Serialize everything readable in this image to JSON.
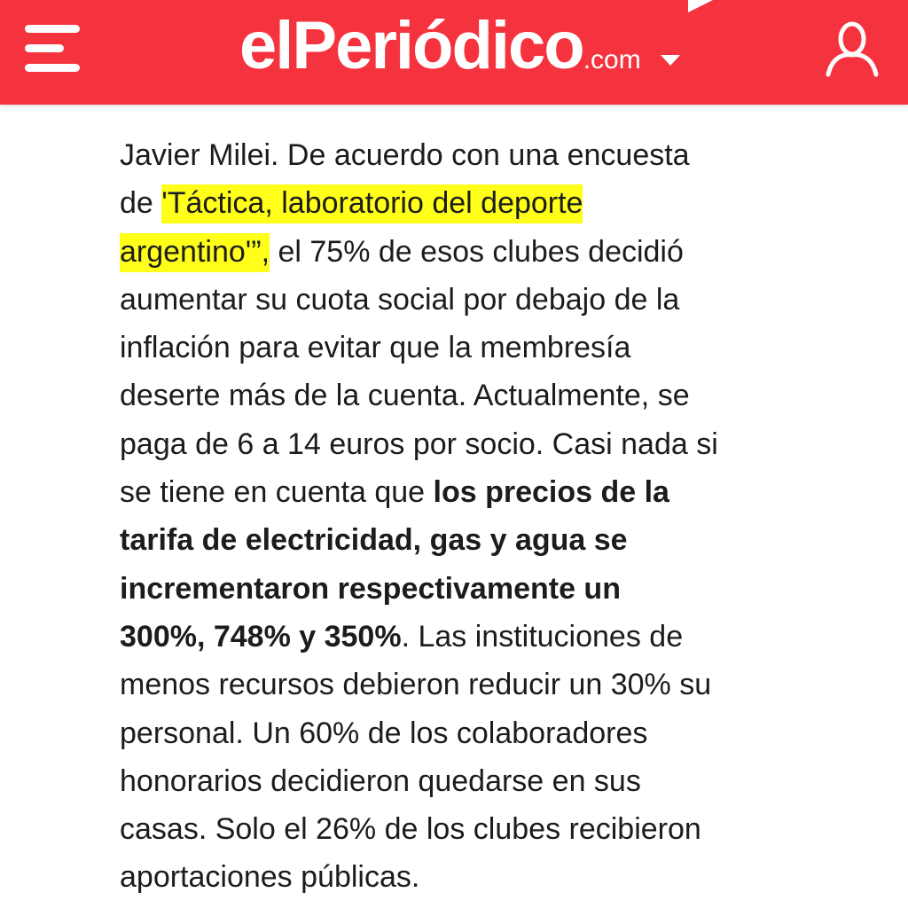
{
  "header": {
    "logo_main": "elPeriódico",
    "logo_domain": ".com",
    "background_color": "#f5333f",
    "menu_icon": "hamburger-menu-icon",
    "user_icon": "user-account-icon",
    "edition_icon": "caret-down-icon"
  },
  "article": {
    "highlight_color": "#ffff1a",
    "lines": [
      [
        {
          "text": "Javier Milei. De acuerdo con una encuesta",
          "style": "normal"
        }
      ],
      [
        {
          "text": "de ",
          "style": "normal"
        },
        {
          "text": "'Táctica, laboratorio del deporte ",
          "style": "highlight"
        }
      ],
      [
        {
          "text": " argentino'”,",
          "style": "highlight"
        },
        {
          "text": " el 75% de esos clubes decidió",
          "style": "normal"
        }
      ],
      [
        {
          "text": "aumentar su cuota social por debajo de la",
          "style": "normal"
        }
      ],
      [
        {
          "text": "inflación para evitar que la membresía",
          "style": "normal"
        }
      ],
      [
        {
          "text": "deserte más de la cuenta. Actualmente, se",
          "style": "normal"
        }
      ],
      [
        {
          "text": "paga de 6 a 14 euros por socio. Casi nada si",
          "style": "normal"
        }
      ],
      [
        {
          "text": "se tiene en cuenta que ",
          "style": "normal"
        },
        {
          "text": "los precios de la",
          "style": "bold"
        }
      ],
      [
        {
          "text": "tarifa de electricidad, gas y agua se",
          "style": "bold"
        }
      ],
      [
        {
          "text": "incrementaron respectivamente un",
          "style": "bold"
        }
      ],
      [
        {
          "text": "300%, 748% y 350%",
          "style": "bold"
        },
        {
          "text": ". Las instituciones de",
          "style": "normal"
        }
      ],
      [
        {
          "text": "menos recursos debieron reducir un 30% su",
          "style": "normal"
        }
      ],
      [
        {
          "text": "personal. Un 60% de los colaboradores",
          "style": "normal"
        }
      ],
      [
        {
          "text": "honorarios decidieron quedarse en sus",
          "style": "normal"
        }
      ],
      [
        {
          "text": "casas. Solo el 26% de los clubes recibieron",
          "style": "normal"
        }
      ],
      [
        {
          "text": "aportaciones públicas.",
          "style": "normal"
        }
      ]
    ]
  }
}
